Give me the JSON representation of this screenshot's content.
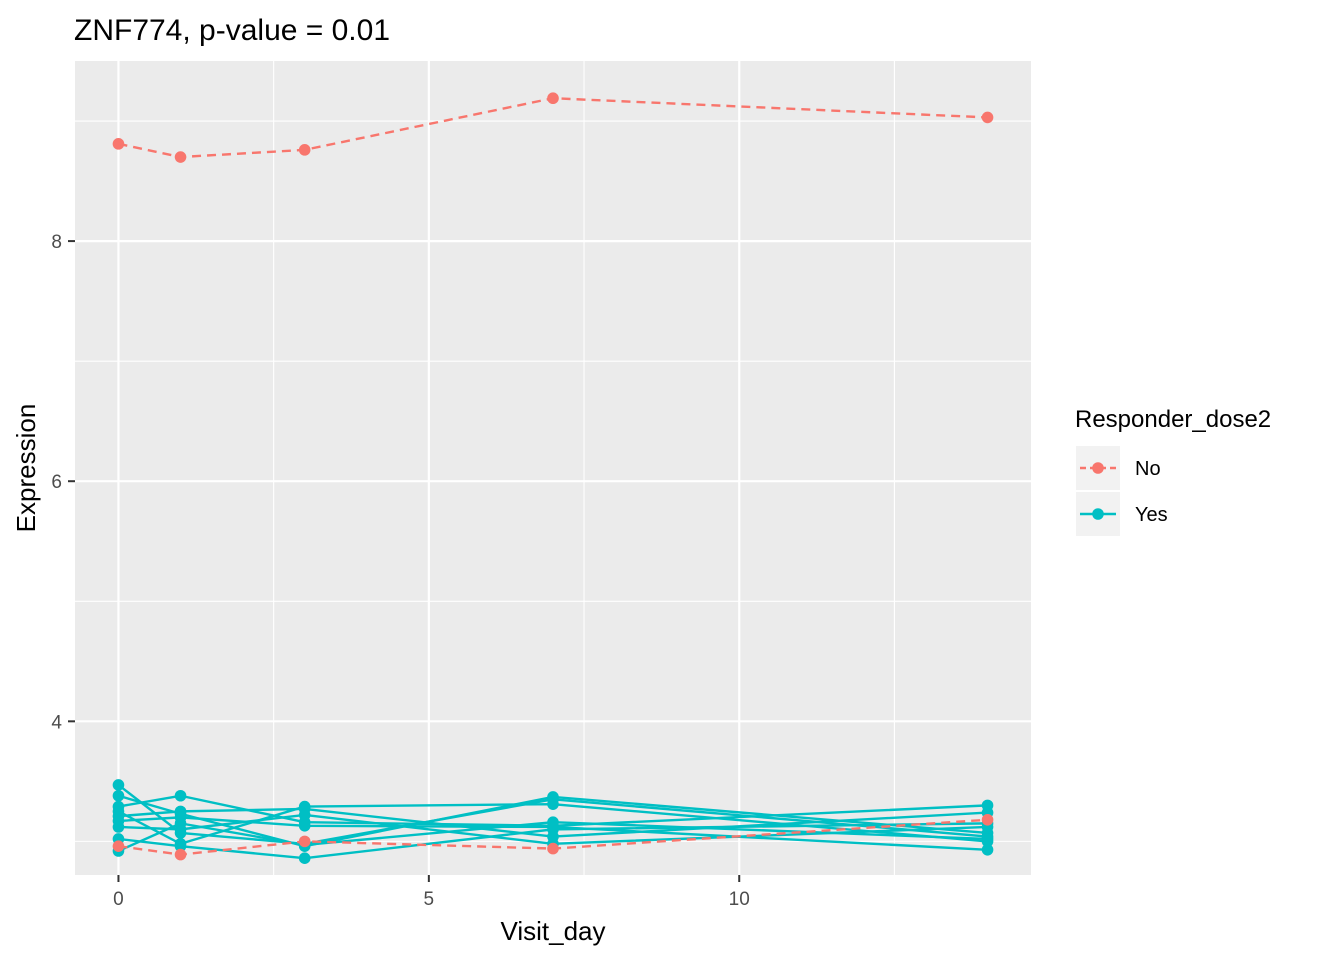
{
  "chart_data": {
    "type": "line",
    "title": "ZNF774, p-value = 0.01",
    "xlabel": "Visit_day",
    "ylabel": "Expression",
    "xlim": [
      -0.7,
      14.7
    ],
    "ylim": [
      2.72,
      9.5
    ],
    "x_ticks": [
      0,
      5,
      10
    ],
    "y_ticks": [
      4,
      6,
      8
    ],
    "grid": true,
    "legend": {
      "title": "Responder_dose2",
      "placement": "right",
      "entries": [
        {
          "label": "No",
          "color": "#F8766D",
          "dash": "dashed"
        },
        {
          "label": "Yes",
          "color": "#00BFC4",
          "dash": "solid"
        }
      ]
    },
    "series": [
      {
        "group": "No",
        "x": [
          0,
          1,
          3,
          7,
          14
        ],
        "y": [
          8.81,
          8.7,
          8.76,
          9.19,
          9.03
        ]
      },
      {
        "group": "No",
        "x": [
          0,
          1,
          3,
          7,
          14
        ],
        "y": [
          2.96,
          2.89,
          3.0,
          2.94,
          3.18
        ]
      },
      {
        "group": "Yes",
        "x": [
          0,
          1,
          3,
          7,
          14
        ],
        "y": [
          3.47,
          3.07,
          2.98,
          3.35,
          3.04
        ]
      },
      {
        "group": "Yes",
        "x": [
          0,
          1,
          3,
          7,
          14
        ],
        "y": [
          3.38,
          3.23,
          2.96,
          3.37,
          3.07
        ]
      },
      {
        "group": "Yes",
        "x": [
          0,
          1,
          3,
          7,
          14
        ],
        "y": [
          3.29,
          3.38,
          3.16,
          3.13,
          3.3
        ]
      },
      {
        "group": "Yes",
        "x": [
          0,
          1,
          3,
          7,
          14
        ],
        "y": [
          3.25,
          2.98,
          3.29,
          3.31,
          3.0
        ]
      },
      {
        "group": "Yes",
        "x": [
          0,
          1,
          3,
          7,
          14
        ],
        "y": [
          3.21,
          3.25,
          3.27,
          3.04,
          3.24
        ]
      },
      {
        "group": "Yes",
        "x": [
          0,
          1,
          3,
          7,
          14
        ],
        "y": [
          3.17,
          3.2,
          3.13,
          3.12,
          2.93
        ]
      },
      {
        "group": "Yes",
        "x": [
          0,
          1,
          3,
          7,
          14
        ],
        "y": [
          3.12,
          3.1,
          3.22,
          2.98,
          3.12
        ]
      },
      {
        "group": "Yes",
        "x": [
          0,
          1,
          3,
          7,
          14
        ],
        "y": [
          3.02,
          2.96,
          2.86,
          3.1,
          3.15
        ]
      },
      {
        "group": "Yes",
        "x": [
          0,
          1,
          3,
          7,
          14
        ],
        "y": [
          2.92,
          3.15,
          2.97,
          3.16,
          3.02
        ]
      }
    ]
  }
}
